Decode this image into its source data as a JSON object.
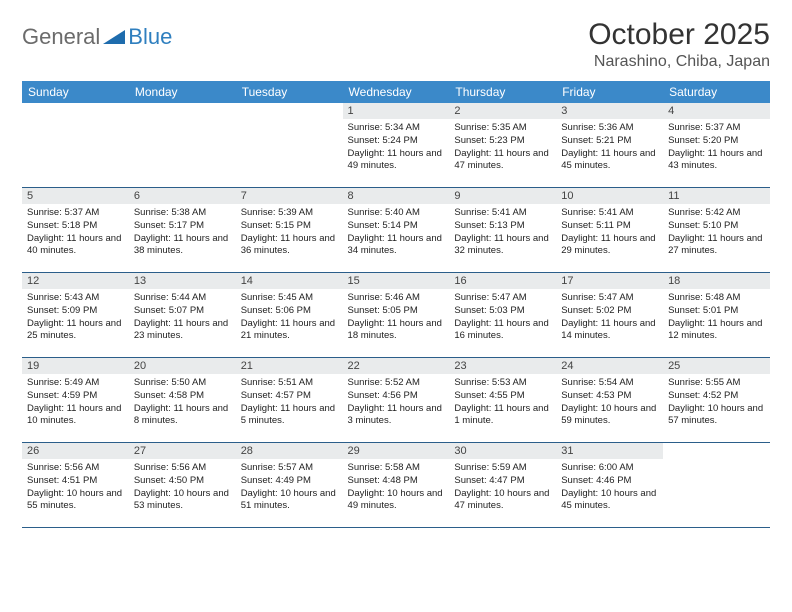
{
  "brand": {
    "word1": "General",
    "word2": "Blue"
  },
  "header": {
    "month": "October 2025",
    "location": "Narashino, Chiba, Japan"
  },
  "colors": {
    "header_bg": "#3b89c9",
    "header_fg": "#ffffff",
    "rule": "#2b5e8a",
    "daynum_bg": "#e9ebec",
    "text": "#222222",
    "logo_gray": "#6b6b6b",
    "logo_blue": "#2f7fbf"
  },
  "weekdays": [
    "Sunday",
    "Monday",
    "Tuesday",
    "Wednesday",
    "Thursday",
    "Friday",
    "Saturday"
  ],
  "layout": {
    "leading_blanks": 3,
    "trailing_blanks": 1
  },
  "days": [
    {
      "n": "1",
      "sr": "Sunrise: 5:34 AM",
      "ss": "Sunset: 5:24 PM",
      "dl": "Daylight: 11 hours and 49 minutes."
    },
    {
      "n": "2",
      "sr": "Sunrise: 5:35 AM",
      "ss": "Sunset: 5:23 PM",
      "dl": "Daylight: 11 hours and 47 minutes."
    },
    {
      "n": "3",
      "sr": "Sunrise: 5:36 AM",
      "ss": "Sunset: 5:21 PM",
      "dl": "Daylight: 11 hours and 45 minutes."
    },
    {
      "n": "4",
      "sr": "Sunrise: 5:37 AM",
      "ss": "Sunset: 5:20 PM",
      "dl": "Daylight: 11 hours and 43 minutes."
    },
    {
      "n": "5",
      "sr": "Sunrise: 5:37 AM",
      "ss": "Sunset: 5:18 PM",
      "dl": "Daylight: 11 hours and 40 minutes."
    },
    {
      "n": "6",
      "sr": "Sunrise: 5:38 AM",
      "ss": "Sunset: 5:17 PM",
      "dl": "Daylight: 11 hours and 38 minutes."
    },
    {
      "n": "7",
      "sr": "Sunrise: 5:39 AM",
      "ss": "Sunset: 5:15 PM",
      "dl": "Daylight: 11 hours and 36 minutes."
    },
    {
      "n": "8",
      "sr": "Sunrise: 5:40 AM",
      "ss": "Sunset: 5:14 PM",
      "dl": "Daylight: 11 hours and 34 minutes."
    },
    {
      "n": "9",
      "sr": "Sunrise: 5:41 AM",
      "ss": "Sunset: 5:13 PM",
      "dl": "Daylight: 11 hours and 32 minutes."
    },
    {
      "n": "10",
      "sr": "Sunrise: 5:41 AM",
      "ss": "Sunset: 5:11 PM",
      "dl": "Daylight: 11 hours and 29 minutes."
    },
    {
      "n": "11",
      "sr": "Sunrise: 5:42 AM",
      "ss": "Sunset: 5:10 PM",
      "dl": "Daylight: 11 hours and 27 minutes."
    },
    {
      "n": "12",
      "sr": "Sunrise: 5:43 AM",
      "ss": "Sunset: 5:09 PM",
      "dl": "Daylight: 11 hours and 25 minutes."
    },
    {
      "n": "13",
      "sr": "Sunrise: 5:44 AM",
      "ss": "Sunset: 5:07 PM",
      "dl": "Daylight: 11 hours and 23 minutes."
    },
    {
      "n": "14",
      "sr": "Sunrise: 5:45 AM",
      "ss": "Sunset: 5:06 PM",
      "dl": "Daylight: 11 hours and 21 minutes."
    },
    {
      "n": "15",
      "sr": "Sunrise: 5:46 AM",
      "ss": "Sunset: 5:05 PM",
      "dl": "Daylight: 11 hours and 18 minutes."
    },
    {
      "n": "16",
      "sr": "Sunrise: 5:47 AM",
      "ss": "Sunset: 5:03 PM",
      "dl": "Daylight: 11 hours and 16 minutes."
    },
    {
      "n": "17",
      "sr": "Sunrise: 5:47 AM",
      "ss": "Sunset: 5:02 PM",
      "dl": "Daylight: 11 hours and 14 minutes."
    },
    {
      "n": "18",
      "sr": "Sunrise: 5:48 AM",
      "ss": "Sunset: 5:01 PM",
      "dl": "Daylight: 11 hours and 12 minutes."
    },
    {
      "n": "19",
      "sr": "Sunrise: 5:49 AM",
      "ss": "Sunset: 4:59 PM",
      "dl": "Daylight: 11 hours and 10 minutes."
    },
    {
      "n": "20",
      "sr": "Sunrise: 5:50 AM",
      "ss": "Sunset: 4:58 PM",
      "dl": "Daylight: 11 hours and 8 minutes."
    },
    {
      "n": "21",
      "sr": "Sunrise: 5:51 AM",
      "ss": "Sunset: 4:57 PM",
      "dl": "Daylight: 11 hours and 5 minutes."
    },
    {
      "n": "22",
      "sr": "Sunrise: 5:52 AM",
      "ss": "Sunset: 4:56 PM",
      "dl": "Daylight: 11 hours and 3 minutes."
    },
    {
      "n": "23",
      "sr": "Sunrise: 5:53 AM",
      "ss": "Sunset: 4:55 PM",
      "dl": "Daylight: 11 hours and 1 minute."
    },
    {
      "n": "24",
      "sr": "Sunrise: 5:54 AM",
      "ss": "Sunset: 4:53 PM",
      "dl": "Daylight: 10 hours and 59 minutes."
    },
    {
      "n": "25",
      "sr": "Sunrise: 5:55 AM",
      "ss": "Sunset: 4:52 PM",
      "dl": "Daylight: 10 hours and 57 minutes."
    },
    {
      "n": "26",
      "sr": "Sunrise: 5:56 AM",
      "ss": "Sunset: 4:51 PM",
      "dl": "Daylight: 10 hours and 55 minutes."
    },
    {
      "n": "27",
      "sr": "Sunrise: 5:56 AM",
      "ss": "Sunset: 4:50 PM",
      "dl": "Daylight: 10 hours and 53 minutes."
    },
    {
      "n": "28",
      "sr": "Sunrise: 5:57 AM",
      "ss": "Sunset: 4:49 PM",
      "dl": "Daylight: 10 hours and 51 minutes."
    },
    {
      "n": "29",
      "sr": "Sunrise: 5:58 AM",
      "ss": "Sunset: 4:48 PM",
      "dl": "Daylight: 10 hours and 49 minutes."
    },
    {
      "n": "30",
      "sr": "Sunrise: 5:59 AM",
      "ss": "Sunset: 4:47 PM",
      "dl": "Daylight: 10 hours and 47 minutes."
    },
    {
      "n": "31",
      "sr": "Sunrise: 6:00 AM",
      "ss": "Sunset: 4:46 PM",
      "dl": "Daylight: 10 hours and 45 minutes."
    }
  ]
}
